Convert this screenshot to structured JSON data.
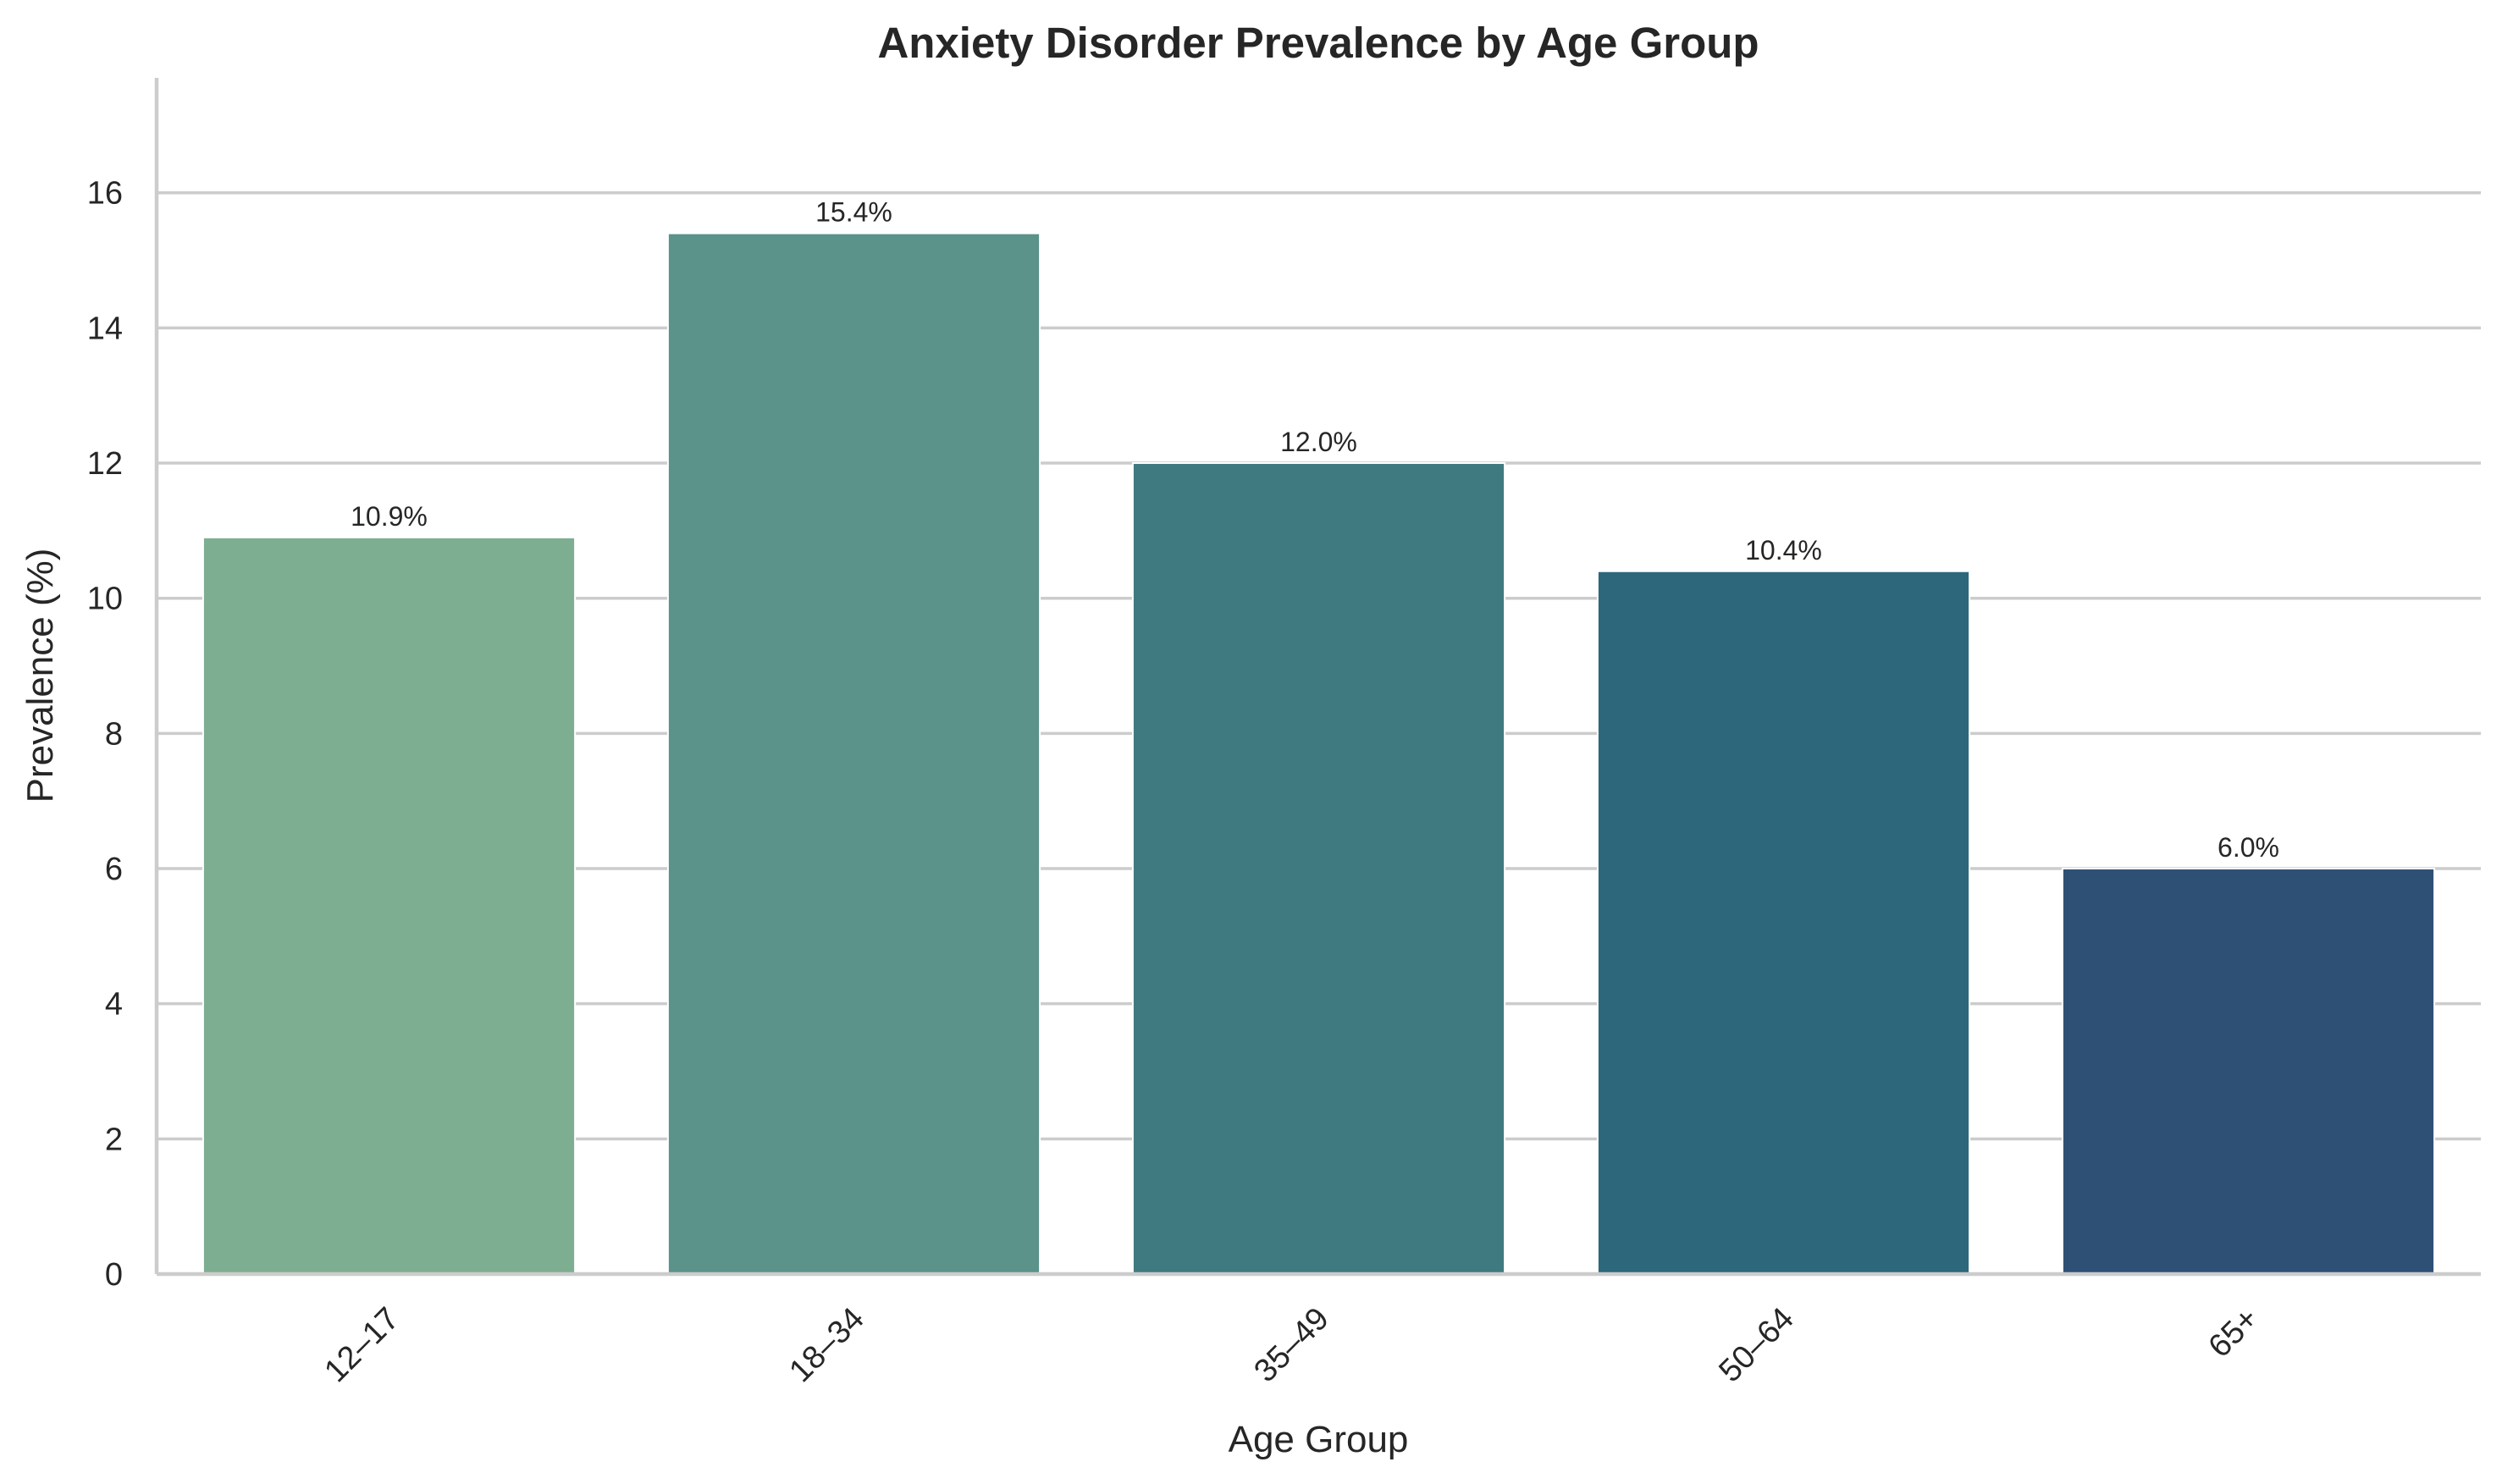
{
  "chart_data": {
    "type": "bar",
    "title": "Anxiety Disorder Prevalence by Age Group",
    "xlabel": "Age Group",
    "ylabel": "Prevalence (%)",
    "categories": [
      "12–17",
      "18–34",
      "35–49",
      "50–64",
      "65+"
    ],
    "values": [
      10.9,
      15.4,
      12.0,
      10.4,
      6.0
    ],
    "data_labels": [
      "10.9%",
      "15.4%",
      "12.0%",
      "10.4%",
      "6.0%"
    ],
    "colors": [
      "#7eae91",
      "#5b9289",
      "#3f7a80",
      "#2d677c",
      "#2f5075"
    ],
    "ylim": [
      0,
      17.7
    ],
    "yticks": [
      0,
      2,
      4,
      6,
      8,
      10,
      12,
      14,
      16
    ],
    "xtick_rotation": "45 degrees",
    "grid": "horizontal",
    "legend": "none"
  }
}
